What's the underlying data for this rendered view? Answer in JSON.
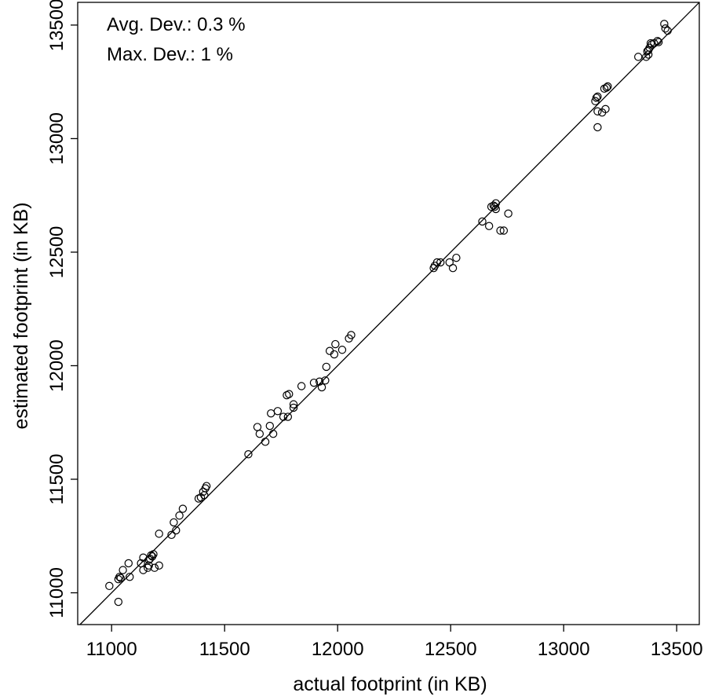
{
  "chart_data": {
    "type": "scatter",
    "xlabel": "actual footprint (in KB)",
    "ylabel": "estimated footprint (in KB)",
    "xlim": [
      10850,
      13600
    ],
    "ylim": [
      10860,
      13600
    ],
    "xticks": [
      11000,
      11500,
      12000,
      12500,
      13000,
      13500
    ],
    "yticks": [
      11000,
      11500,
      12000,
      12500,
      13000,
      13500
    ],
    "xtick_labels": [
      "11000",
      "11500",
      "12000",
      "12500",
      "13000",
      "13500"
    ],
    "ytick_labels": [
      "11000",
      "11500",
      "12000",
      "12500",
      "13000",
      "13500"
    ],
    "reference_line": "y = x",
    "annotations": [
      "Avg. Dev.: 0.3 %",
      "Max. Dev.: 1 %"
    ],
    "grid": false,
    "marker": "open-circle",
    "points": [
      [
        10990,
        11030
      ],
      [
        11030,
        11060
      ],
      [
        11035,
        11070
      ],
      [
        11040,
        11065
      ],
      [
        11050,
        11100
      ],
      [
        11075,
        11130
      ],
      [
        11080,
        11070
      ],
      [
        11030,
        10960
      ],
      [
        11130,
        11130
      ],
      [
        11140,
        11155
      ],
      [
        11140,
        11100
      ],
      [
        11160,
        11110
      ],
      [
        11165,
        11120
      ],
      [
        11165,
        11145
      ],
      [
        11170,
        11150
      ],
      [
        11175,
        11165
      ],
      [
        11180,
        11160
      ],
      [
        11185,
        11170
      ],
      [
        11190,
        11110
      ],
      [
        11210,
        11120
      ],
      [
        11210,
        11260
      ],
      [
        11265,
        11255
      ],
      [
        11275,
        11310
      ],
      [
        11285,
        11275
      ],
      [
        11300,
        11340
      ],
      [
        11315,
        11370
      ],
      [
        11385,
        11415
      ],
      [
        11395,
        11420
      ],
      [
        11405,
        11445
      ],
      [
        11410,
        11430
      ],
      [
        11415,
        11460
      ],
      [
        11420,
        11470
      ],
      [
        11605,
        11610
      ],
      [
        11645,
        11730
      ],
      [
        11655,
        11700
      ],
      [
        11680,
        11665
      ],
      [
        11700,
        11735
      ],
      [
        11705,
        11790
      ],
      [
        11715,
        11700
      ],
      [
        11735,
        11800
      ],
      [
        11760,
        11775
      ],
      [
        11775,
        11870
      ],
      [
        11780,
        11775
      ],
      [
        11785,
        11875
      ],
      [
        11805,
        11815
      ],
      [
        11805,
        11830
      ],
      [
        11840,
        11910
      ],
      [
        11895,
        11925
      ],
      [
        11920,
        11930
      ],
      [
        11930,
        11905
      ],
      [
        11945,
        11935
      ],
      [
        11950,
        11995
      ],
      [
        11965,
        12065
      ],
      [
        11985,
        12050
      ],
      [
        11990,
        12095
      ],
      [
        12020,
        12070
      ],
      [
        12050,
        12120
      ],
      [
        12060,
        12135
      ],
      [
        12425,
        12430
      ],
      [
        12430,
        12440
      ],
      [
        12440,
        12455
      ],
      [
        12455,
        12455
      ],
      [
        12495,
        12455
      ],
      [
        12510,
        12430
      ],
      [
        12525,
        12475
      ],
      [
        12640,
        12635
      ],
      [
        12670,
        12615
      ],
      [
        12680,
        12700
      ],
      [
        12690,
        12705
      ],
      [
        12695,
        12700
      ],
      [
        12700,
        12715
      ],
      [
        12700,
        12690
      ],
      [
        12720,
        12595
      ],
      [
        12735,
        12595
      ],
      [
        12755,
        12670
      ],
      [
        13140,
        13165
      ],
      [
        13145,
        13180
      ],
      [
        13150,
        13185
      ],
      [
        13150,
        13120
      ],
      [
        13150,
        13050
      ],
      [
        13170,
        13115
      ],
      [
        13180,
        13220
      ],
      [
        13185,
        13130
      ],
      [
        13190,
        13225
      ],
      [
        13195,
        13230
      ],
      [
        13330,
        13360
      ],
      [
        13365,
        13360
      ],
      [
        13370,
        13385
      ],
      [
        13375,
        13390
      ],
      [
        13375,
        13370
      ],
      [
        13380,
        13400
      ],
      [
        13385,
        13420
      ],
      [
        13390,
        13415
      ],
      [
        13400,
        13420
      ],
      [
        13415,
        13430
      ],
      [
        13420,
        13425
      ],
      [
        13445,
        13505
      ],
      [
        13450,
        13485
      ],
      [
        13460,
        13475
      ]
    ]
  }
}
